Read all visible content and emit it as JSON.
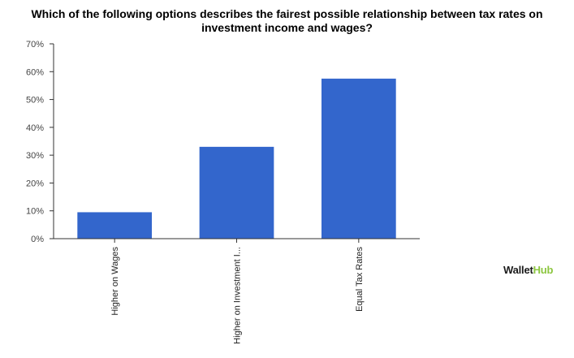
{
  "chart_data": {
    "type": "bar",
    "title": "Which of the following options describes the fairest possible relationship between tax rates on investment income and wages?",
    "categories": [
      "Higher on Wages",
      "Higher on Investment I...",
      "Equal Tax Rates"
    ],
    "values": [
      9.5,
      33,
      57.5
    ],
    "ylim": [
      0,
      70
    ],
    "yticks": [
      "0%",
      "10%",
      "20%",
      "30%",
      "40%",
      "50%",
      "60%",
      "70%"
    ],
    "ytick_values": [
      0,
      10,
      20,
      30,
      40,
      50,
      60,
      70
    ],
    "grid": false,
    "legend": "none",
    "bar_color": "#3366cc"
  },
  "brand": {
    "part1": "Wallet",
    "part2": "Hub"
  }
}
